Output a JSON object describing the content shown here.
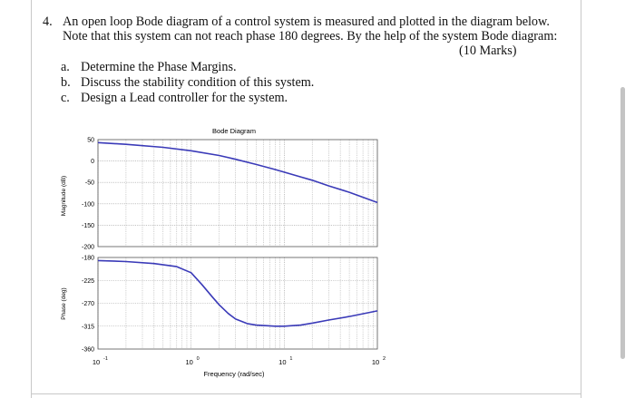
{
  "question": {
    "number": "4.",
    "line1": "An open loop Bode diagram of a control system is measured and plotted in the diagram below.",
    "line2": "Note that this system can not reach phase 180 degrees. By the help of the system Bode diagram:",
    "marks": "(10 Marks)"
  },
  "subitems": [
    {
      "letter": "a.",
      "text": "Determine the Phase Margins."
    },
    {
      "letter": "b.",
      "text": "Discuss the stability condition of this system."
    },
    {
      "letter": "c.",
      "text": "Design a Lead controller for the system."
    }
  ],
  "chart_data": {
    "type": "line",
    "title": "Bode Diagram",
    "xlabel": "Frequency (rad/sec)",
    "x_scale": "log",
    "xlim": [
      0.1,
      100
    ],
    "x_tick_labels": [
      {
        "base": "10",
        "exp": "-1"
      },
      {
        "base": "10",
        "exp": "0"
      },
      {
        "base": "10",
        "exp": "1"
      },
      {
        "base": "10",
        "exp": "2"
      }
    ],
    "grid": true,
    "magnitude": {
      "ylabel": "Magnitude (dB)",
      "ylim": [
        -200,
        50
      ],
      "yticks": [
        "50",
        "0",
        "-50",
        "-100",
        "-150",
        "-200"
      ],
      "series": [
        {
          "color": "#3a3ab8",
          "x": [
            0.1,
            0.2,
            0.5,
            1,
            2,
            3,
            5,
            8,
            10,
            15,
            20,
            30,
            50,
            100
          ],
          "y": [
            43,
            39,
            32,
            24,
            13,
            4,
            -8,
            -20,
            -26,
            -37,
            -45,
            -58,
            -73,
            -97
          ]
        }
      ]
    },
    "phase": {
      "ylabel": "Phase (deg)",
      "ylim": [
        -360,
        -180
      ],
      "yticks": [
        "-180",
        "-225",
        "-270",
        "-315",
        "-360"
      ],
      "series": [
        {
          "color": "#3a3ab8",
          "x": [
            0.1,
            0.2,
            0.4,
            0.7,
            1,
            1.3,
            1.7,
            2,
            2.5,
            3,
            4,
            5,
            8,
            10,
            15,
            20,
            30,
            50,
            100
          ],
          "y": [
            -186,
            -188,
            -192,
            -198,
            -210,
            -233,
            -258,
            -273,
            -290,
            -301,
            -310,
            -313,
            -315,
            -315,
            -313,
            -309,
            -303,
            -296,
            -285
          ]
        }
      ]
    }
  }
}
